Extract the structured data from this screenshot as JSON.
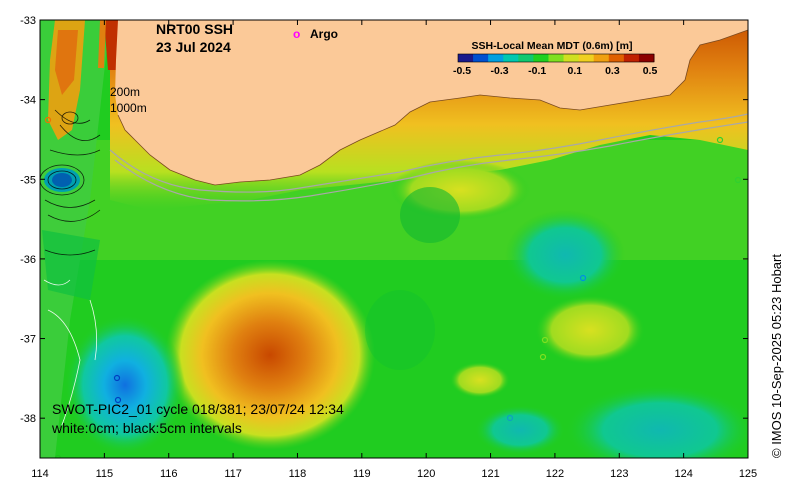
{
  "title": {
    "line1": "NRT00 SSH",
    "line2": "23 Jul 2024"
  },
  "legend": {
    "argo_marker": "o",
    "argo_label": "Argo"
  },
  "colorbar": {
    "title": "SSH-Local Mean MDT (0.6m) [m]",
    "ticks": [
      "-0.5",
      "-0.3",
      "-0.1",
      "0.1",
      "0.3",
      "0.5"
    ],
    "colors": [
      "#1a1a8c",
      "#0050d0",
      "#00a0e0",
      "#00c8b0",
      "#10c870",
      "#20d020",
      "#80e020",
      "#d0e020",
      "#f0d020",
      "#f0a010",
      "#e06000",
      "#c02000",
      "#8c0000"
    ]
  },
  "annotations": {
    "contour_200": "200m",
    "contour_1000": "1000m"
  },
  "swath": {
    "line1": "SWOT-PIC2_01 cycle 018/381; 23/07/24 12:34",
    "line2": "white:0cm; black:5cm intervals"
  },
  "credit": "© IMOS 10-Sep-2025 05:23 Hobart",
  "axes": {
    "x_ticks": [
      "114",
      "115",
      "116",
      "117",
      "118",
      "119",
      "120",
      "121",
      "122",
      "123",
      "124",
      "125"
    ],
    "y_ticks": [
      "-33",
      "-34",
      "-35",
      "-36",
      "-37",
      "-38"
    ],
    "xlim": [
      114,
      125
    ],
    "ylim": [
      -38.5,
      -33
    ]
  },
  "colors": {
    "land": "#fbc998",
    "background": "#20cc20"
  }
}
